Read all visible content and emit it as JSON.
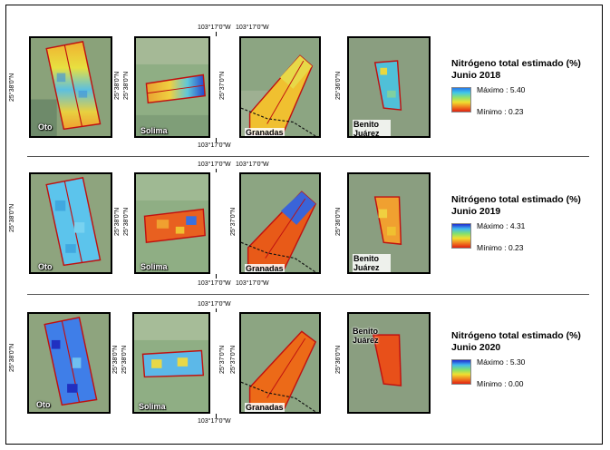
{
  "rows": [
    {
      "year_label": "Junio 2018",
      "legend_title": "Nitrógeno total estimado (%)",
      "max_label": "Máximo",
      "max_value": ": 5.40",
      "min_label": "Mínimo",
      "min_value": ": 0.23",
      "farms": {
        "oto": "Oto",
        "solima": "Solima",
        "granadas": "Granadas",
        "benito": "Benito Juárez"
      }
    },
    {
      "year_label": "Junio 2019",
      "legend_title": "Nitrógeno total estimado (%)",
      "max_label": "Máximo",
      "max_value": ": 4.31",
      "min_label": "Mínimo",
      "min_value": ": 0.23",
      "farms": {
        "oto": "Oto",
        "solima": "Solima",
        "granadas": "Granadas",
        "benito": "Benito Juárez"
      }
    },
    {
      "year_label": "Junio 2020",
      "legend_title": "Nitrógeno total estimado (%)",
      "max_label": "Máximo",
      "max_value": ": 5.30",
      "min_label": "Mínimo",
      "min_value": ": 0.00",
      "farms": {
        "oto": "Oto",
        "solima": "Solima",
        "granadas": "Granadas",
        "benito": "Benito Juárez"
      }
    }
  ],
  "coords": {
    "lon": "103°17'0\"W",
    "lat_oto": "25°38'0\"N",
    "lat_solima": "25°38'0\"N",
    "lat_granadas": "25°37'0\"N",
    "lat_benito": "25°36'0\"N"
  },
  "colors": {
    "max": "#2233cc",
    "mid": "#e8e030",
    "min": "#cc1a10"
  }
}
